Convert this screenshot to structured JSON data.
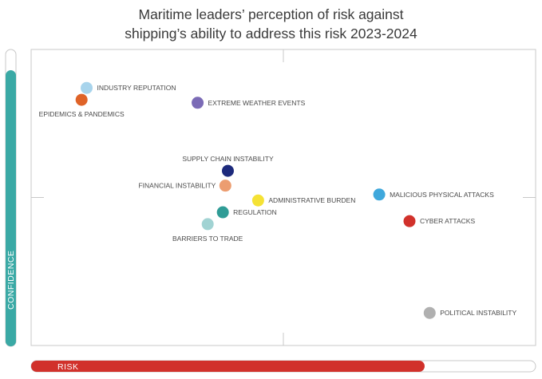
{
  "chart_data": {
    "type": "scatter",
    "title_line1": "Maritime leaders’ perception of risk against",
    "title_line2": "shipping’s ability to address this risk 2023-2024",
    "xlabel": "RISK",
    "ylabel": "CONFIDENCE",
    "xlim": [
      0,
      100
    ],
    "ylim": [
      0,
      100
    ],
    "risk_bar_level": 0.78,
    "confidence_bar_level": 0.93,
    "colors": {
      "risk_bar": "#d1312b",
      "confidence_bar": "#3aa9a5",
      "frame": "#c8c8c8"
    },
    "points": [
      {
        "label": "INDUSTRY REPUTATION",
        "x": 11,
        "y": 87,
        "color": "#a8d4ec",
        "label_side": "right"
      },
      {
        "label": "EPIDEMICS & PANDEMICS",
        "x": 10,
        "y": 83,
        "color": "#df6328",
        "label_side": "below"
      },
      {
        "label": "EXTREME WEATHER EVENTS",
        "x": 33,
        "y": 82,
        "color": "#7b6bb6",
        "label_side": "right"
      },
      {
        "label": "SUPPLY CHAIN INSTABILITY",
        "x": 39,
        "y": 59,
        "color": "#1d2a7c",
        "label_side": "above"
      },
      {
        "label": "FINANCIAL INSTABILITY",
        "x": 38.5,
        "y": 54,
        "color": "#ec9d70",
        "label_side": "left"
      },
      {
        "label": "ADMINISTRATIVE BURDEN",
        "x": 45,
        "y": 49,
        "color": "#f5e235",
        "label_side": "right"
      },
      {
        "label": "REGULATION",
        "x": 38,
        "y": 45,
        "color": "#2f9c96",
        "label_side": "right"
      },
      {
        "label": "BARRIERS TO TRADE",
        "x": 35,
        "y": 41,
        "color": "#a1d3d3",
        "label_side": "below"
      },
      {
        "label": "MALICIOUS PHYSICAL ATTACKS",
        "x": 69,
        "y": 51,
        "color": "#3fa8dc",
        "label_side": "right"
      },
      {
        "label": "CYBER ATTACKS",
        "x": 75,
        "y": 42,
        "color": "#d1312b",
        "label_side": "right"
      },
      {
        "label": "POLITICAL INSTABILITY",
        "x": 79,
        "y": 11,
        "color": "#b0b0b0",
        "label_side": "right"
      }
    ]
  }
}
